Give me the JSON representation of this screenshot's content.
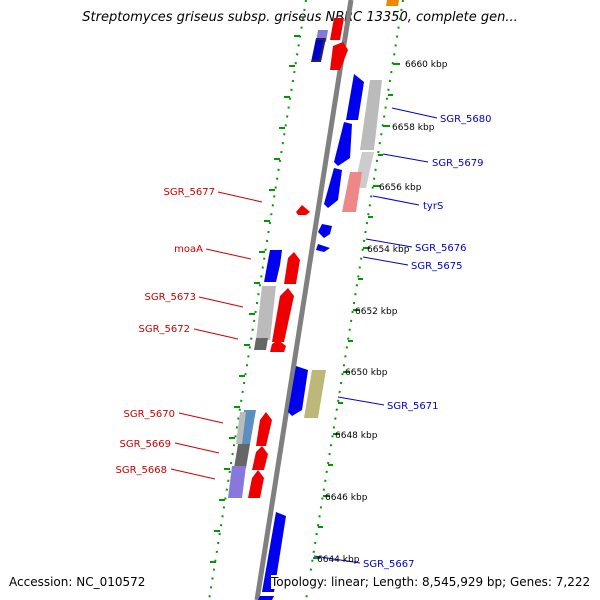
{
  "title": "Streptomyces griseus subsp. griseus NBRC 13350, complete gen...",
  "footer": {
    "accession": "Accession: NC_010572",
    "topology": "Topology: linear; Length: 8,545,929 bp; Genes: 7,222"
  },
  "scale_ticks": [
    {
      "label": "6660 kbp",
      "kbp": 6660
    },
    {
      "label": "6658 kbp",
      "kbp": 6658
    },
    {
      "label": "6656 kbp",
      "kbp": 6656
    },
    {
      "label": "6654 kbp",
      "kbp": 6654
    },
    {
      "label": "6652 kbp",
      "kbp": 6652
    },
    {
      "label": "6650 kbp",
      "kbp": 6650
    },
    {
      "label": "6648 kbp",
      "kbp": 6648
    },
    {
      "label": "6646 kbp",
      "kbp": 6646
    },
    {
      "label": "6644 kbp",
      "kbp": 6644
    }
  ],
  "gene_labels": {
    "forward": [
      "SGR_5680",
      "SGR_5679",
      "tyrS",
      "SGR_5676",
      "SGR_5675",
      "SGR_5671",
      "SGR_5667"
    ],
    "reverse": [
      "SGR_5677",
      "moaA",
      "SGR_5673",
      "SGR_5672",
      "SGR_5670",
      "SGR_5669",
      "SGR_5668"
    ]
  },
  "colors": {
    "forward_label": "#0000cc",
    "reverse_label": "#cc0000",
    "backbone": "#808080",
    "grid_dots": "#009900",
    "gene_blue": "#0000ee",
    "gene_red": "#ee0000",
    "gene_gray": "#bbbbbb",
    "gene_olive": "#bdb77a",
    "gene_pink": "#ee8888",
    "gene_purple": "#8877dd",
    "gene_steel": "#5b8fbf",
    "gene_darkgray": "#666666"
  }
}
